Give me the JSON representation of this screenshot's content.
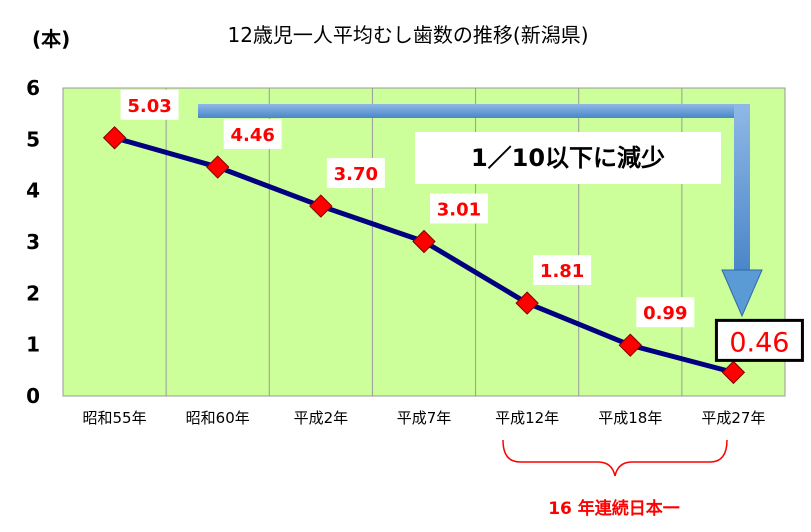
{
  "chart_data": {
    "type": "line",
    "title": "12歳児一人平均むし歯数の推移(新潟県)",
    "ylabel": "(本)",
    "ylim": [
      0,
      6
    ],
    "yticks": [
      0,
      1,
      2,
      3,
      4,
      5,
      6
    ],
    "grid": "vertical",
    "categories": [
      "昭和55年",
      "昭和60年",
      "平成2年",
      "平成7年",
      "平成12年",
      "平成18年",
      "平成27年"
    ],
    "values": [
      5.03,
      4.46,
      3.7,
      3.01,
      1.81,
      0.99,
      0.46
    ],
    "data_labels": [
      "5.03",
      "4.46",
      "3.70",
      "3.01",
      "1.81",
      "0.99",
      "0.46"
    ],
    "annotations": {
      "reduction": "1／10以下に減少",
      "streak": "16 年連続日本一"
    },
    "colors": {
      "plot_bg": "#ccff99",
      "line": "#000080",
      "marker": "#ff0000",
      "label_text": "#ff0000",
      "arrow": "#5b9bd5",
      "bracket": "#ff0000"
    }
  }
}
